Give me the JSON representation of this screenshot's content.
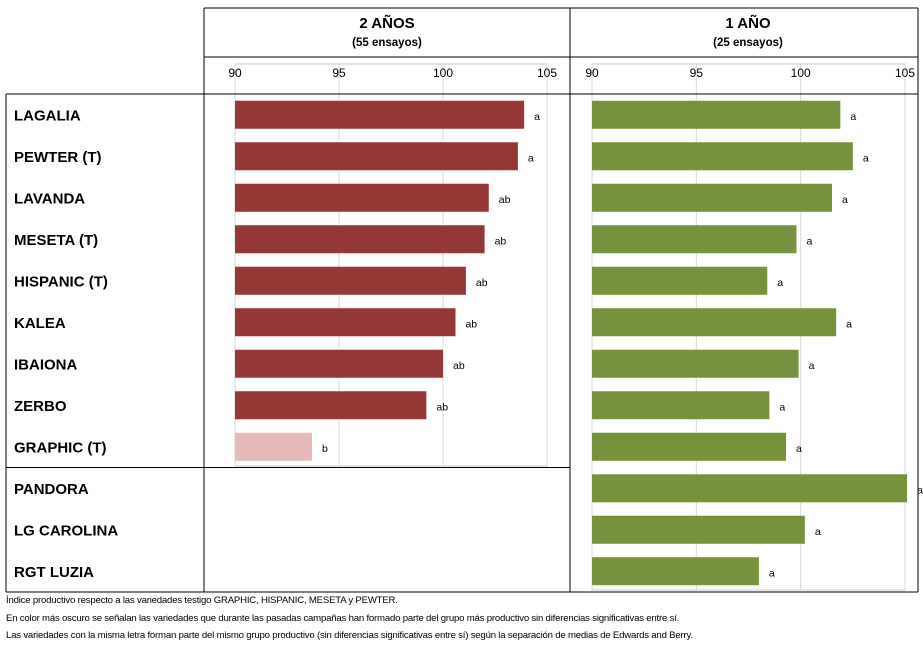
{
  "varieties": [
    "LAGALIA",
    "PEWTER (T)",
    "LAVANDA",
    "MESETA (T)",
    "HISPANIC (T)",
    "KALEA",
    "IBAIONA",
    "ZERBO",
    "GRAPHIC (T)",
    "PANDORA",
    "LG CAROLINA",
    "RGT LUZIA"
  ],
  "chart_data": [
    {
      "type": "bar",
      "orientation": "horizontal",
      "title": "2 AÑOS",
      "subtitle": "(55 ensayos)",
      "categories": [
        "LAGALIA",
        "PEWTER (T)",
        "LAVANDA",
        "MESETA (T)",
        "HISPANIC (T)",
        "KALEA",
        "IBAIONA",
        "ZERBO",
        "GRAPHIC (T)"
      ],
      "values": [
        103.9,
        103.6,
        102.2,
        102.0,
        101.1,
        100.6,
        100.0,
        99.2,
        93.7
      ],
      "labels": [
        "a",
        "a",
        "ab",
        "ab",
        "ab",
        "ab",
        "ab",
        "ab",
        "b"
      ],
      "colors": [
        "#953735",
        "#953735",
        "#953735",
        "#953735",
        "#953735",
        "#953735",
        "#953735",
        "#953735",
        "#e6b9b8"
      ],
      "xlim": [
        90,
        105
      ],
      "xticks": [
        "90",
        "95",
        "100",
        "105"
      ],
      "grid": true
    },
    {
      "type": "bar",
      "orientation": "horizontal",
      "title": "1 AÑO",
      "subtitle": "(25 ensayos)",
      "categories": [
        "LAGALIA",
        "PEWTER (T)",
        "LAVANDA",
        "MESETA (T)",
        "HISPANIC (T)",
        "KALEA",
        "IBAIONA",
        "ZERBO",
        "GRAPHIC (T)",
        "PANDORA",
        "LG CAROLINA",
        "RGT LUZIA"
      ],
      "values": [
        101.9,
        102.5,
        101.5,
        99.8,
        98.4,
        101.7,
        99.9,
        98.5,
        99.3,
        105.1,
        100.2,
        98.0
      ],
      "labels": [
        "a",
        "a",
        "a",
        "a",
        "a",
        "a",
        "a",
        "a",
        "a",
        "a",
        "a",
        "a"
      ],
      "colors": [
        "#76923c",
        "#76923c",
        "#76923c",
        "#76923c",
        "#76923c",
        "#76923c",
        "#76923c",
        "#76923c",
        "#76923c",
        "#76923c",
        "#76923c",
        "#76923c"
      ],
      "xlim": [
        90,
        105
      ],
      "xticks": [
        "90",
        "95",
        "100",
        "105"
      ],
      "grid": true
    }
  ],
  "notes": [
    "Índice productivo respecto a las variedades testigo GRAPHIC,  HISPANIC,  MESETA  y PEWTER.",
    "En color más oscuro se señalan las variedades que durante las pasadas campañas han formado parte del grupo más productivo sin diferencias significativas entre sí.",
    "Las variedades con la misma  letra forman parte del mismo  grupo productivo (sin diferencias significativas entre sí) según la separación de medias  de Edwards and Berry."
  ]
}
